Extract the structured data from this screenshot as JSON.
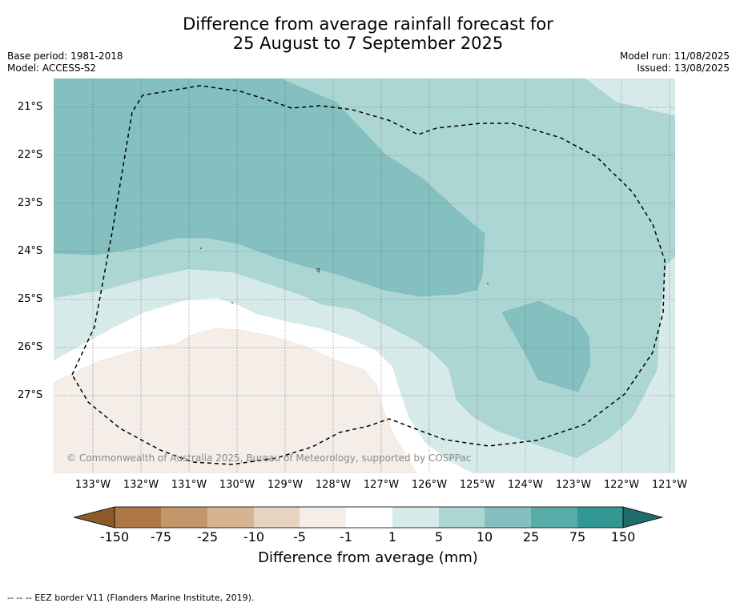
{
  "title": {
    "line1": "Difference from average rainfall forecast for",
    "line2": "25 August to 7 September 2025"
  },
  "meta": {
    "base_period": "Base period: 1981-2018",
    "model": "Model: ACCESS-S2",
    "model_run": "Model run: 11/08/2025",
    "issued": "Issued: 13/08/2025"
  },
  "map": {
    "latitude_labels": [
      "21°S",
      "22°S",
      "23°S",
      "24°S",
      "25°S",
      "26°S",
      "27°S"
    ],
    "longitude_labels": [
      "133°W",
      "132°W",
      "131°W",
      "130°W",
      "129°W",
      "128°W",
      "127°W",
      "126°W",
      "125°W",
      "124°W",
      "123°W",
      "122°W",
      "121°W"
    ],
    "copyright": "© Commonwealth of Australia 2025, Bureau of Meteorology, supported by COSPPac",
    "boundary_style": "dashed black line",
    "colors": {
      "background_light_teal": "#d6eae9",
      "band_5_10": "#acd6d4",
      "band_10_25": "#84c0bf",
      "white": "#ffffff",
      "light_brown": "#f4ede8"
    }
  },
  "colorbar": {
    "ticks": [
      "-150",
      "-75",
      "-25",
      "-10",
      "-5",
      "-1",
      "1",
      "5",
      "10",
      "25",
      "75",
      "150"
    ],
    "colors": [
      "#8c5a2a",
      "#ad7843",
      "#c39769",
      "#d6b491",
      "#e6d3c1",
      "#f4ede8",
      "#ffffff",
      "#d6eae9",
      "#acd6d4",
      "#84c0bf",
      "#5aaca9",
      "#339893",
      "#1f6c68"
    ],
    "label": "Difference from average (mm)"
  },
  "footer": {
    "legend": "--  --  -- EEZ border V11 (Flanders Marine Institute, 2019)."
  }
}
